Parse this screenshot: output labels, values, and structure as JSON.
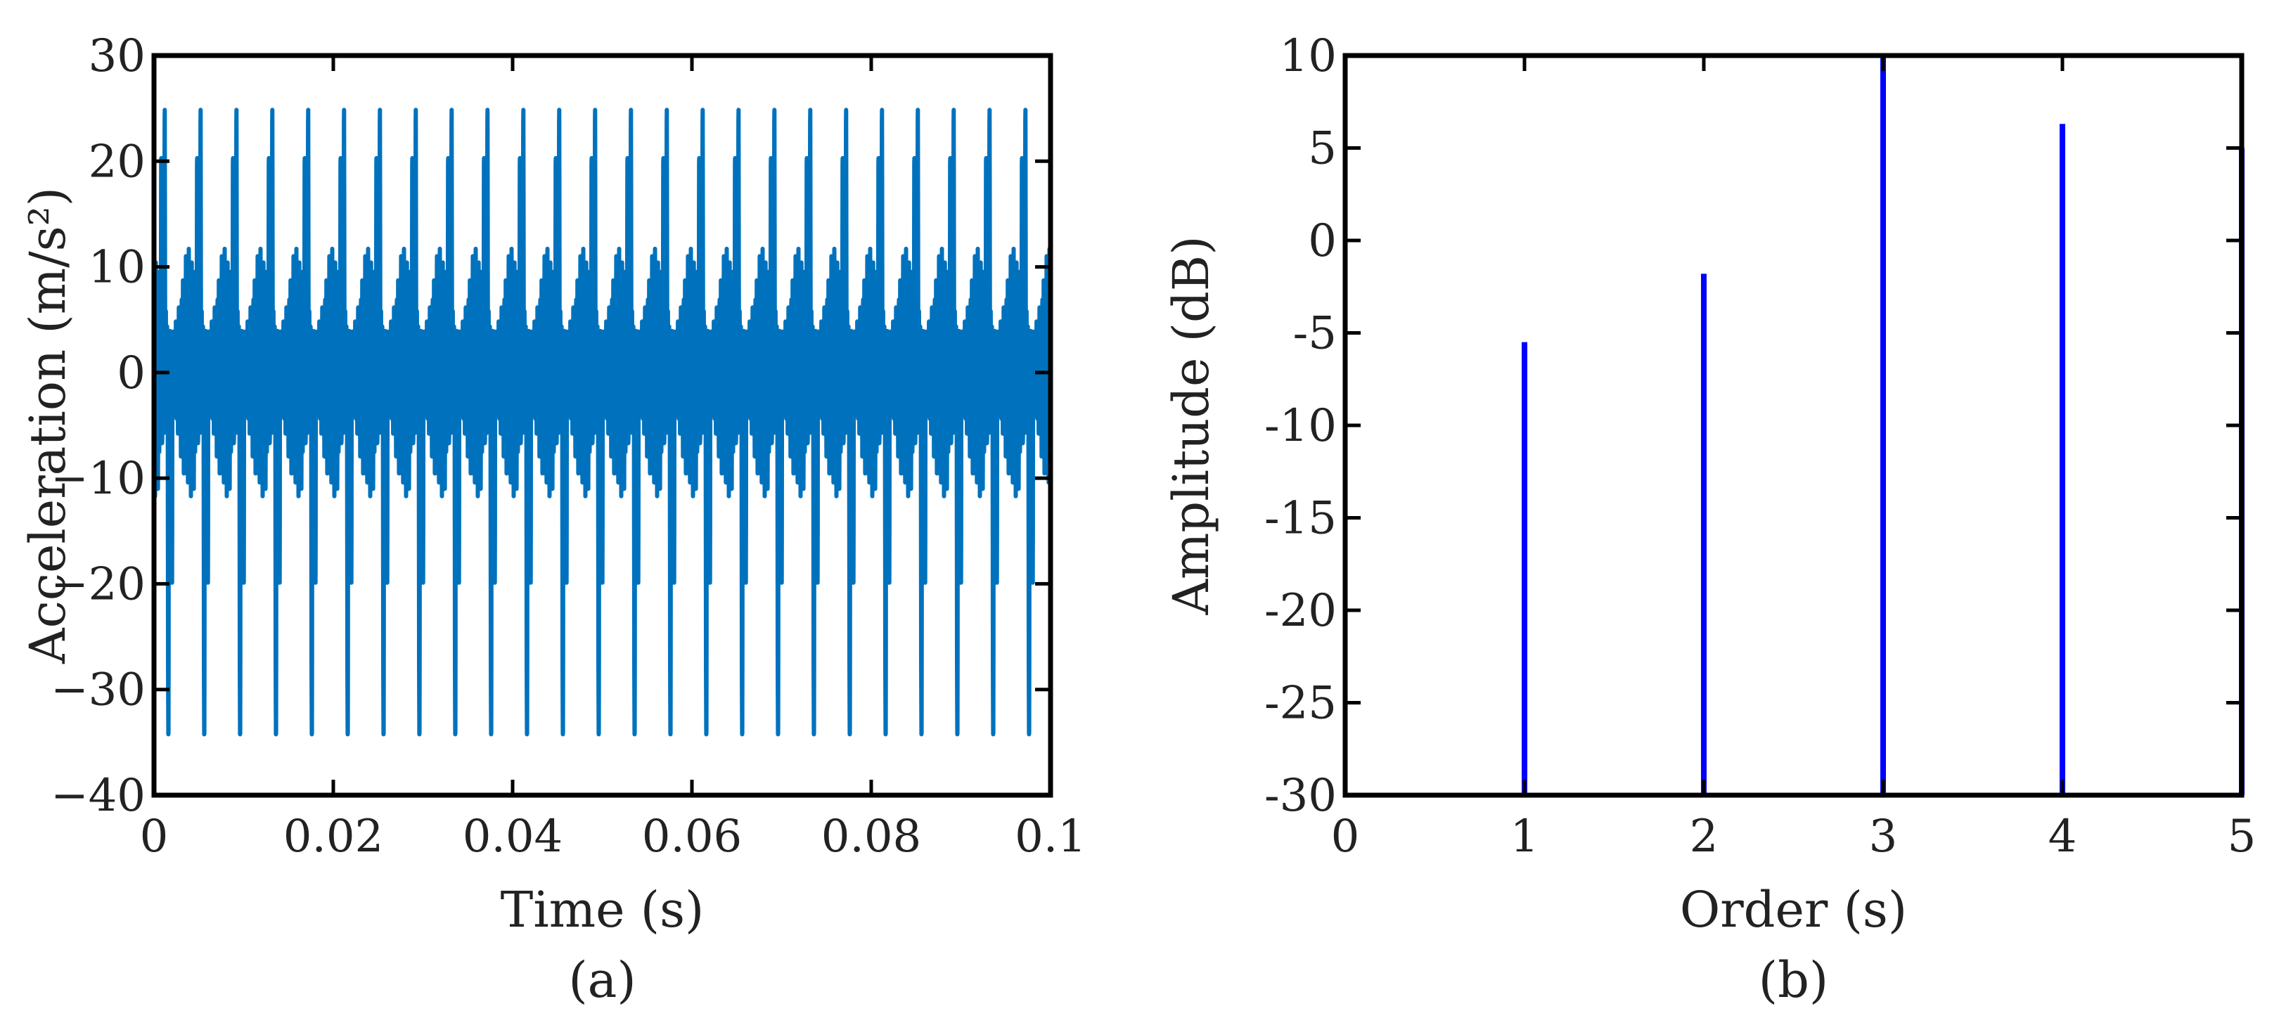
{
  "colors": {
    "signal": "#0072BD",
    "stem": "#0000FF",
    "axes": "#000000",
    "text": "#222222"
  },
  "chart_data": [
    {
      "type": "line",
      "caption": "(a)",
      "xlabel": "Time (s)",
      "ylabel": "Acceleration (m/s²)",
      "xlim": [
        0,
        0.1
      ],
      "ylim": [
        -40,
        30
      ],
      "xticks": [
        "0",
        "0.02",
        "0.04",
        "0.06",
        "0.08",
        "0.1"
      ],
      "yticks": [
        "30",
        "20",
        "10",
        "0",
        "−10",
        "−20",
        "−30",
        "−40"
      ],
      "grid": false,
      "signal": {
        "period_s": 0.004,
        "duration_s": 0.1,
        "peak_max": 22,
        "peak_min": -36,
        "secondary_max": 17,
        "secondary_min": -18
      }
    },
    {
      "type": "stem",
      "caption": "(b)",
      "xlabel": "Order (s)",
      "ylabel": "Amplitude (dB)",
      "xlim": [
        0,
        5
      ],
      "ylim": [
        -30,
        10
      ],
      "xticks": [
        "0",
        "1",
        "2",
        "3",
        "4",
        "5"
      ],
      "yticks": [
        "10",
        "5",
        "0",
        "-5",
        "-10",
        "-15",
        "-20",
        "-25",
        "-30"
      ],
      "grid": false,
      "x": [
        1,
        2,
        3,
        4,
        5
      ],
      "values": [
        -5.5,
        -1.8,
        10,
        6.3,
        5
      ]
    }
  ]
}
